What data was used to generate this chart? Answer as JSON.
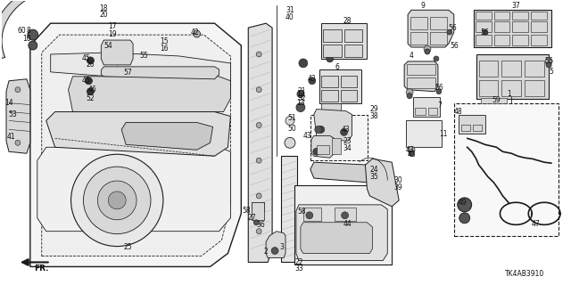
{
  "title": "",
  "diagram_code": "TK4AB3910",
  "background_color": "#ffffff",
  "line_color": "#1a1a1a",
  "fig_width": 6.4,
  "fig_height": 3.2,
  "dpi": 100,
  "text_fontsize": 5.0,
  "annotation_color": "#111111",
  "gray_fill": "#d8d8d8",
  "light_gray": "#eeeeee",
  "mid_gray": "#aaaaaa"
}
